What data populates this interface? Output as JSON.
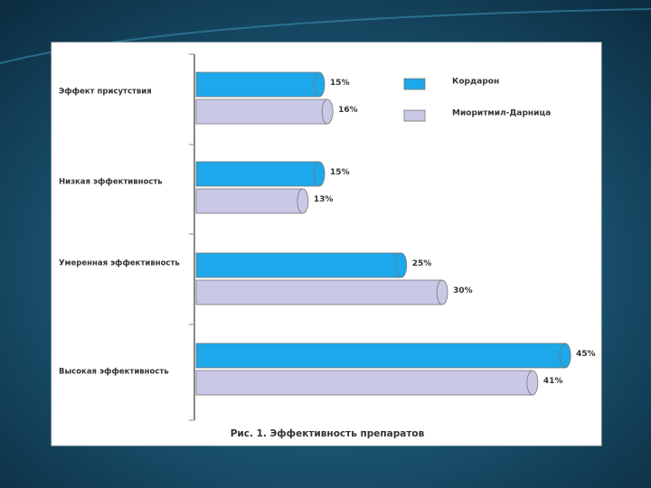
{
  "chart_data": {
    "type": "bar",
    "orientation": "horizontal",
    "title": "Рис. 1. Эффективность препаратов",
    "categories": [
      "Эффект присутствия",
      "Низкая эффективность",
      "Умеренная эффективность",
      "Высокая эффективность"
    ],
    "series": [
      {
        "name": "Кордарон",
        "color": "#1ca8ea",
        "values": [
          15,
          15,
          25,
          45
        ],
        "value_labels": [
          "15%",
          "15%",
          "25%",
          "45%"
        ]
      },
      {
        "name": "Миоритмил-Дарница",
        "color": "#c9c8e6",
        "values": [
          16,
          13,
          30,
          41
        ],
        "value_labels": [
          "16%",
          "13%",
          "30%",
          "41%"
        ]
      }
    ]
  }
}
